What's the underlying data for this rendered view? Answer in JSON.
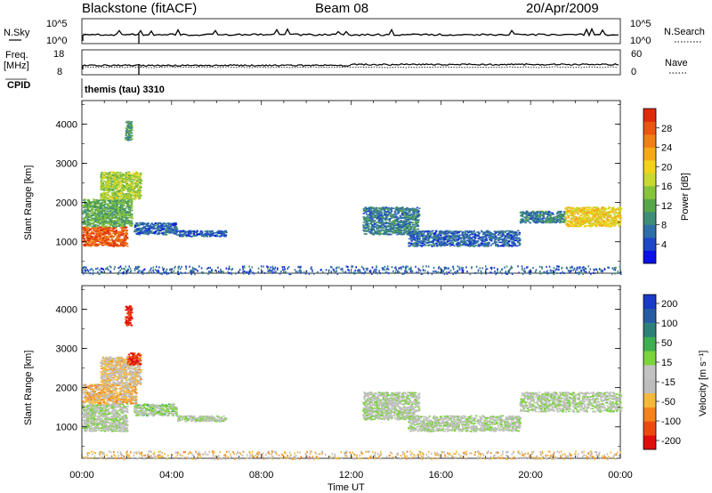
{
  "header": {
    "title": "Blackstone (fitACF)",
    "beam": "Beam 08",
    "date": "20/Apr/2009"
  },
  "top_panels": {
    "sky_label": "N.Sky",
    "search_label": "N.Search",
    "sky_ticks": [
      "10^5",
      "10^0"
    ],
    "freq_label_1": "Freq.",
    "freq_label_2": "[MHz]",
    "freq_ticks": [
      "18",
      "8"
    ],
    "nave_label": "Nave",
    "nave_ticks": [
      "60",
      "0"
    ],
    "cpid_label": "CPID",
    "cpid_text": "themis (tau) 3310"
  },
  "power_colorbar": {
    "label": "Power [dB]",
    "ticks": [
      "28",
      "24",
      "20",
      "16",
      "12",
      "8",
      "4"
    ],
    "colors": [
      "#0a10e6",
      "#1d47c8",
      "#2f6fa8",
      "#3f8c78",
      "#57a64a",
      "#86c43a",
      "#c8d830",
      "#f2d21a",
      "#f5a818",
      "#f07f14",
      "#e85610",
      "#e02a0c"
    ]
  },
  "velocity_colorbar": {
    "label": "Velocity [m s⁻¹]",
    "ticks": [
      "200",
      "100",
      "50",
      "15",
      "-15",
      "-50",
      "-100",
      "-200"
    ],
    "colors": [
      "#e00d0d",
      "#ee4a10",
      "#f5831a",
      "#f5b93a",
      "#bdbdbd",
      "#c2c2c2",
      "#7cd43c",
      "#3faf52",
      "#2f8078",
      "#285ca2",
      "#1a3ac8"
    ]
  },
  "axes": {
    "ylabel": "Slant Range [km]",
    "xlabel": "Time UT",
    "y_ticks": [
      "1000",
      "2000",
      "3000",
      "4000"
    ],
    "x_ticks": [
      "00:00",
      "04:00",
      "08:00",
      "12:00",
      "16:00",
      "20:00",
      "00:00"
    ]
  },
  "chart_data": [
    {
      "type": "heatmap",
      "ylabel": "Slant Range [km]",
      "xlim": [
        0,
        24
      ],
      "ylim": [
        200,
        4600
      ],
      "colorbar_label": "Power [dB]",
      "colorbar_range": [
        0,
        32
      ],
      "regions": [
        {
          "x": [
            0.0,
            2.0
          ],
          "y": [
            900,
            1400
          ],
          "value": 28
        },
        {
          "x": [
            0.0,
            2.2
          ],
          "y": [
            1400,
            2100
          ],
          "value": 12
        },
        {
          "x": [
            0.8,
            2.6
          ],
          "y": [
            2100,
            2800
          ],
          "value": 16
        },
        {
          "x": [
            1.9,
            2.2
          ],
          "y": [
            3600,
            4100
          ],
          "value": 10
        },
        {
          "x": [
            2.3,
            4.2
          ],
          "y": [
            1200,
            1500
          ],
          "value": 6
        },
        {
          "x": [
            4.2,
            6.4
          ],
          "y": [
            1150,
            1300
          ],
          "value": 5
        },
        {
          "x": [
            12.5,
            15.0
          ],
          "y": [
            1200,
            1900
          ],
          "value": 8
        },
        {
          "x": [
            14.5,
            19.5
          ],
          "y": [
            900,
            1300
          ],
          "value": 6
        },
        {
          "x": [
            19.5,
            21.5
          ],
          "y": [
            1500,
            1800
          ],
          "value": 8
        },
        {
          "x": [
            21.5,
            24.0
          ],
          "y": [
            1400,
            1900
          ],
          "value": 20
        },
        {
          "x": [
            0.0,
            24.0
          ],
          "y": [
            200,
            400
          ],
          "value": 6
        }
      ]
    },
    {
      "type": "heatmap",
      "ylabel": "Slant Range [km]",
      "xlabel": "Time UT",
      "xlim": [
        0,
        24
      ],
      "ylim": [
        200,
        4600
      ],
      "colorbar_label": "Velocity [m s⁻¹]",
      "colorbar_range": [
        -240,
        240
      ],
      "regions": [
        {
          "x": [
            0.0,
            2.0
          ],
          "y": [
            900,
            1600
          ],
          "value": 0
        },
        {
          "x": [
            0.0,
            2.4
          ],
          "y": [
            1600,
            2100
          ],
          "value": -80
        },
        {
          "x": [
            0.8,
            2.6
          ],
          "y": [
            2100,
            2800
          ],
          "value": -60
        },
        {
          "x": [
            1.9,
            2.2
          ],
          "y": [
            3600,
            4100
          ],
          "value": -220
        },
        {
          "x": [
            2.0,
            2.6
          ],
          "y": [
            2600,
            2900
          ],
          "value": -200
        },
        {
          "x": [
            2.3,
            4.2
          ],
          "y": [
            1300,
            1600
          ],
          "value": 20
        },
        {
          "x": [
            4.2,
            6.4
          ],
          "y": [
            1150,
            1300
          ],
          "value": 0
        },
        {
          "x": [
            12.5,
            15.0
          ],
          "y": [
            1200,
            1900
          ],
          "value": 0
        },
        {
          "x": [
            14.5,
            19.5
          ],
          "y": [
            900,
            1300
          ],
          "value": 0
        },
        {
          "x": [
            19.5,
            24.0
          ],
          "y": [
            1400,
            1900
          ],
          "value": 0
        },
        {
          "x": [
            0.0,
            24.0
          ],
          "y": [
            200,
            400
          ],
          "value": -70
        }
      ]
    }
  ]
}
